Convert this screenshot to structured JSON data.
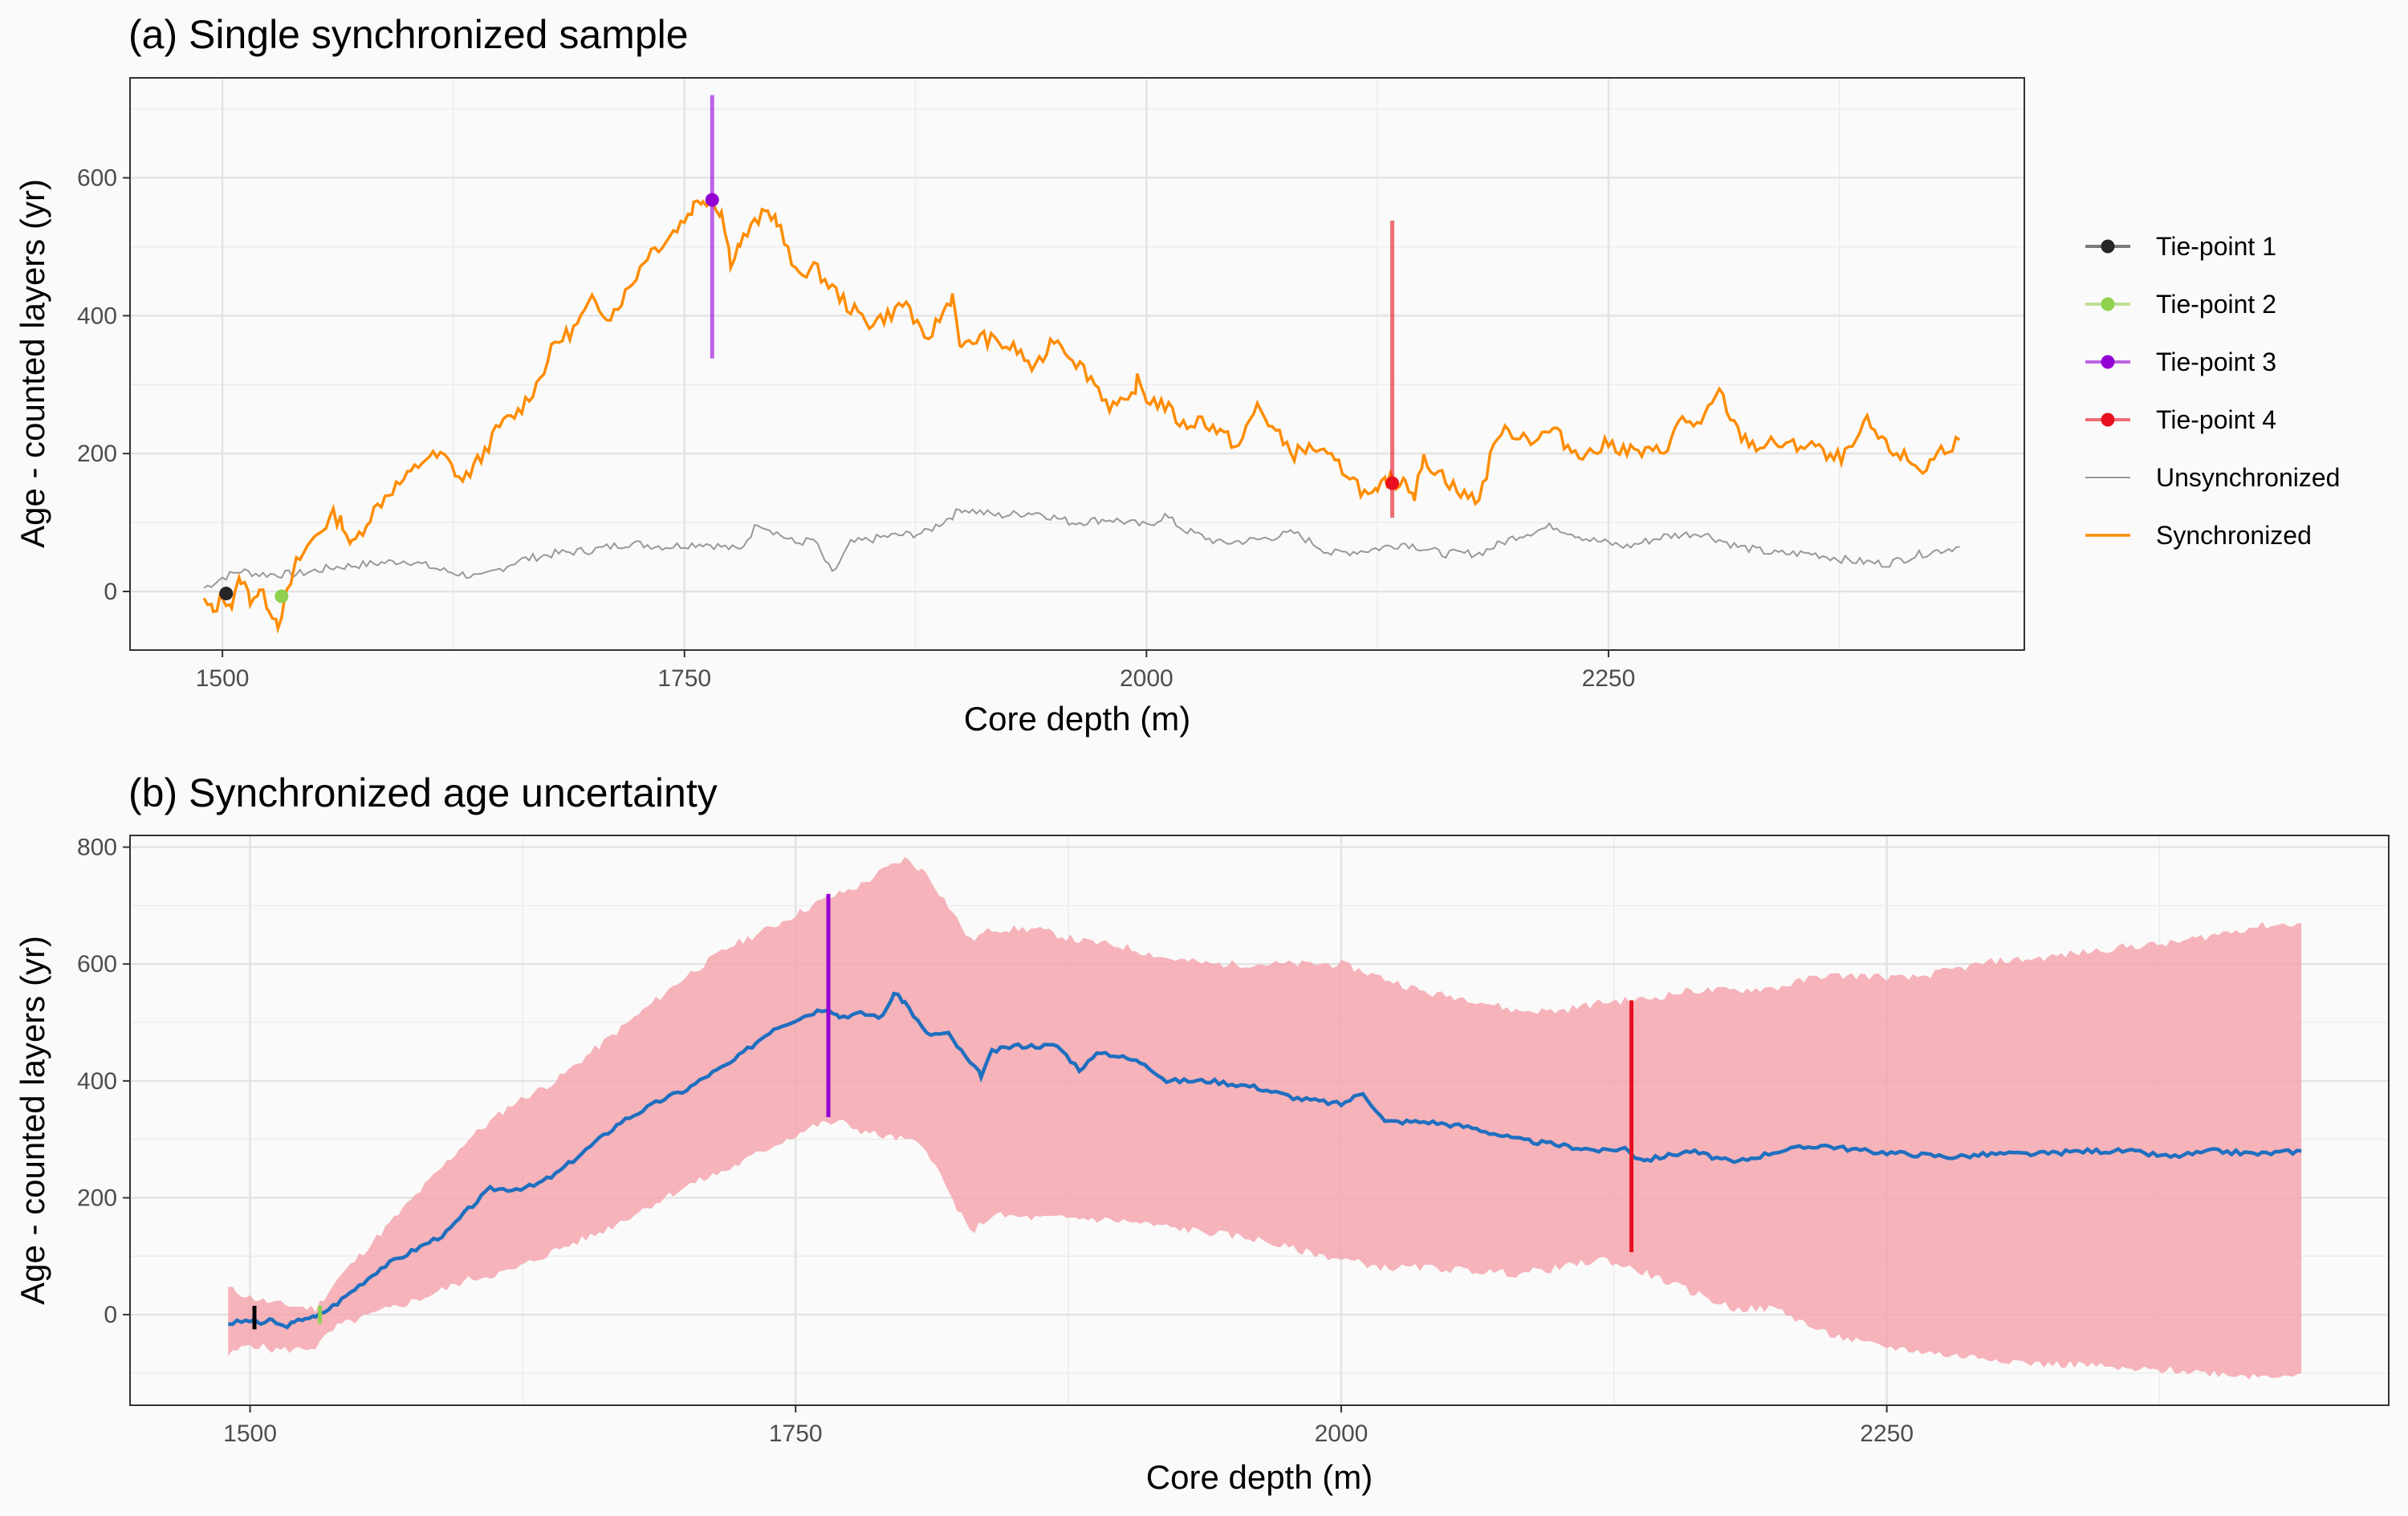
{
  "chart_data": [
    {
      "type": "line",
      "title": "(a) Single synchronized sample",
      "xlabel": "Core depth (m)",
      "ylabel": "Age - counted layers (yr)",
      "xlim": [
        1450,
        2475
      ],
      "ylim": [
        -85,
        745
      ],
      "xticks": [
        1500,
        1750,
        2000,
        2250
      ],
      "yticks": [
        0,
        200,
        400,
        600
      ],
      "grid": true,
      "legend": "right",
      "legend_entries": [
        "Tie-point 1",
        "Tie-point 2",
        "Tie-point 3",
        "Tie-point 4",
        "Unsynchronized",
        "Synchronized"
      ],
      "colors": {
        "tie1": "#262626",
        "tie2": "#8fd14f",
        "tie3": "#9400d3",
        "tie4": "#e8101e",
        "unsync": "#999999",
        "sync": "#ff8c00"
      },
      "tie_points": [
        {
          "name": "Tie-point 1",
          "x": 1502,
          "y": -3,
          "ymin": -3,
          "ymax": -3
        },
        {
          "name": "Tie-point 2",
          "x": 1532,
          "y": -7,
          "ymin": -7,
          "ymax": -7
        },
        {
          "name": "Tie-point 3",
          "x": 1765,
          "y": 568,
          "ymin": 338,
          "ymax": 720
        },
        {
          "name": "Tie-point 4",
          "x": 2133,
          "y": 157,
          "ymin": 107,
          "ymax": 538
        }
      ],
      "series": [
        {
          "name": "Synchronized",
          "x": [
            1490,
            1495,
            1500,
            1505,
            1510,
            1515,
            1520,
            1525,
            1530,
            1535,
            1540,
            1550,
            1560,
            1565,
            1570,
            1580,
            1590,
            1600,
            1610,
            1620,
            1630,
            1640,
            1650,
            1660,
            1670,
            1680,
            1690,
            1700,
            1710,
            1720,
            1730,
            1740,
            1750,
            1755,
            1760,
            1765,
            1770,
            1775,
            1780,
            1790,
            1795,
            1800,
            1810,
            1820,
            1830,
            1840,
            1850,
            1860,
            1870,
            1880,
            1890,
            1895,
            1900,
            1910,
            1920,
            1930,
            1940,
            1950,
            1960,
            1970,
            1980,
            1990,
            1995,
            2000,
            2010,
            2020,
            2030,
            2040,
            2050,
            2060,
            2070,
            2080,
            2090,
            2100,
            2110,
            2120,
            2125,
            2130,
            2135,
            2140,
            2145,
            2150,
            2160,
            2170,
            2180,
            2190,
            2200,
            2210,
            2220,
            2230,
            2240,
            2250,
            2260,
            2270,
            2280,
            2290,
            2300,
            2310,
            2320,
            2330,
            2340,
            2350,
            2360,
            2370,
            2380,
            2390,
            2400,
            2410,
            2420,
            2430,
            2440
          ],
          "y": [
            -15,
            -30,
            -5,
            -20,
            20,
            -10,
            0,
            -20,
            -45,
            -5,
            40,
            80,
            110,
            100,
            65,
            110,
            145,
            165,
            195,
            195,
            160,
            195,
            240,
            260,
            300,
            360,
            380,
            420,
            400,
            440,
            490,
            510,
            540,
            560,
            570,
            568,
            550,
            480,
            505,
            540,
            550,
            540,
            460,
            470,
            440,
            410,
            390,
            400,
            420,
            360,
            405,
            430,
            350,
            370,
            360,
            350,
            320,
            370,
            340,
            310,
            270,
            270,
            305,
            280,
            270,
            240,
            250,
            230,
            210,
            270,
            230,
            200,
            210,
            190,
            170,
            135,
            140,
            165,
            157,
            165,
            140,
            190,
            170,
            140,
            135,
            230,
            230,
            220,
            235,
            205,
            200,
            215,
            205,
            200,
            205,
            250,
            240,
            290,
            230,
            210,
            215,
            210,
            215,
            190,
            200,
            245,
            210,
            195,
            175,
            205,
            220
          ]
        },
        {
          "name": "Unsynchronized",
          "x": [
            1490,
            1500,
            1510,
            1520,
            1530,
            1540,
            1560,
            1580,
            1600,
            1620,
            1640,
            1660,
            1680,
            1700,
            1720,
            1740,
            1760,
            1780,
            1790,
            1800,
            1810,
            1820,
            1830,
            1840,
            1860,
            1880,
            1895,
            1900,
            1920,
            1940,
            1960,
            1980,
            2000,
            2010,
            2020,
            2040,
            2060,
            2080,
            2100,
            2120,
            2140,
            2160,
            2180,
            2200,
            2220,
            2240,
            2260,
            2280,
            2300,
            2320,
            2340,
            2360,
            2380,
            2400,
            2420,
            2440
          ],
          "y": [
            5,
            20,
            30,
            25,
            25,
            25,
            35,
            40,
            45,
            30,
            20,
            45,
            55,
            60,
            70,
            65,
            70,
            60,
            100,
            85,
            70,
            75,
            25,
            70,
            80,
            85,
            110,
            120,
            110,
            115,
            100,
            105,
            95,
            110,
            90,
            70,
            75,
            85,
            55,
            60,
            70,
            55,
            55,
            80,
            95,
            75,
            65,
            80,
            85,
            65,
            55,
            55,
            45,
            40,
            55,
            65
          ]
        }
      ]
    },
    {
      "type": "area",
      "title": "(b) Synchronized age uncertainty",
      "xlabel": "Core depth (m)",
      "ylabel": "Age - counted layers (yr)",
      "xlim": [
        1445,
        2480
      ],
      "ylim": [
        -155,
        820
      ],
      "xticks": [
        1500,
        1750,
        2000,
        2250
      ],
      "yticks": [
        0,
        200,
        400,
        600,
        800
      ],
      "grid": true,
      "colors": {
        "band": "#f4a6ae",
        "median": "#1f6fbf",
        "tie1": "#000000",
        "tie2": "#8fd14f",
        "tie3": "#9400d3",
        "tie4": "#e8101e"
      },
      "tie_intervals": [
        {
          "x": 1502,
          "ymin": -25,
          "ymax": 15
        },
        {
          "x": 1532,
          "ymin": -15,
          "ymax": 15
        },
        {
          "x": 1765,
          "ymin": 338,
          "ymax": 720
        },
        {
          "x": 2133,
          "ymin": 107,
          "ymax": 538
        }
      ],
      "band": {
        "x": [
          1490,
          1500,
          1510,
          1520,
          1530,
          1540,
          1560,
          1580,
          1600,
          1620,
          1640,
          1660,
          1680,
          1700,
          1720,
          1740,
          1760,
          1770,
          1780,
          1790,
          1800,
          1810,
          1820,
          1830,
          1840,
          1860,
          1880,
          1900,
          1920,
          1940,
          1960,
          1980,
          2000,
          2020,
          2040,
          2060,
          2080,
          2100,
          2120,
          2140,
          2160,
          2180,
          2200,
          2220,
          2240,
          2260,
          2280,
          2300,
          2320,
          2340,
          2360,
          2380,
          2400,
          2420,
          2440
        ],
        "lower": [
          -70,
          -50,
          -60,
          -60,
          -55,
          -20,
          5,
          30,
          60,
          75,
          110,
          140,
          180,
          220,
          250,
          290,
          325,
          330,
          315,
          305,
          300,
          285,
          210,
          140,
          170,
          165,
          165,
          160,
          150,
          140,
          130,
          110,
          95,
          80,
          80,
          75,
          70,
          80,
          95,
          70,
          40,
          10,
          10,
          -30,
          -50,
          -60,
          -70,
          -75,
          -85,
          -85,
          -95,
          -95,
          -100,
          -105,
          -100
        ],
        "upper": [
          45,
          30,
          20,
          15,
          10,
          60,
          140,
          220,
          300,
          360,
          400,
          460,
          520,
          580,
          630,
          665,
          705,
          720,
          735,
          760,
          780,
          755,
          700,
          640,
          660,
          660,
          640,
          630,
          610,
          600,
          600,
          600,
          600,
          575,
          550,
          540,
          520,
          520,
          535,
          540,
          555,
          555,
          560,
          580,
          580,
          575,
          590,
          605,
          610,
          620,
          630,
          635,
          650,
          665,
          670
        ]
      },
      "median": {
        "x": [
          1490,
          1500,
          1505,
          1510,
          1515,
          1520,
          1525,
          1530,
          1540,
          1550,
          1560,
          1570,
          1580,
          1590,
          1600,
          1610,
          1620,
          1630,
          1640,
          1650,
          1660,
          1670,
          1680,
          1690,
          1700,
          1710,
          1720,
          1730,
          1740,
          1750,
          1760,
          1765,
          1770,
          1780,
          1790,
          1795,
          1800,
          1810,
          1820,
          1830,
          1835,
          1840,
          1850,
          1860,
          1870,
          1880,
          1890,
          1900,
          1910,
          1920,
          1940,
          1960,
          1980,
          2000,
          2010,
          2020,
          2040,
          2060,
          2080,
          2100,
          2120,
          2130,
          2135,
          2140,
          2160,
          2180,
          2200,
          2220,
          2240,
          2260,
          2280,
          2300,
          2320,
          2340,
          2360,
          2380,
          2400,
          2420,
          2440
        ],
        "y": [
          -15,
          -10,
          -15,
          -10,
          -20,
          -15,
          -5,
          -5,
          20,
          50,
          80,
          100,
          120,
          140,
          180,
          215,
          215,
          220,
          240,
          270,
          300,
          330,
          350,
          370,
          385,
          410,
          430,
          460,
          490,
          505,
          520,
          525,
          510,
          515,
          510,
          550,
          535,
          480,
          480,
          430,
          410,
          450,
          460,
          460,
          460,
          420,
          450,
          440,
          430,
          400,
          400,
          390,
          370,
          360,
          380,
          330,
          330,
          320,
          300,
          290,
          280,
          285,
          270,
          265,
          280,
          260,
          280,
          290,
          280,
          275,
          270,
          275,
          275,
          280,
          280,
          270,
          280,
          275,
          280
        ]
      }
    }
  ]
}
